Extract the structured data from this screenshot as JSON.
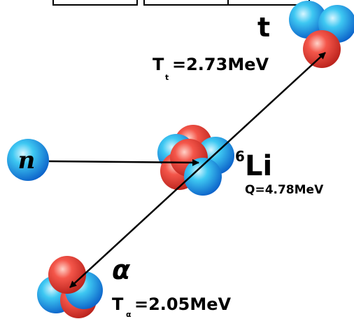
{
  "triton": {
    "symbol": "t",
    "energy_symbol": "T",
    "energy_subscript": "t",
    "energy_value": "=2.73MeV"
  },
  "neutron": {
    "symbol": "n"
  },
  "lithium": {
    "mass_number": "6",
    "symbol": "Li",
    "q_value": "Q=4.78MeV"
  },
  "alpha": {
    "symbol": "α",
    "energy_symbol": "T",
    "energy_subscript": "α",
    "energy_value": "=2.05MeV"
  }
}
